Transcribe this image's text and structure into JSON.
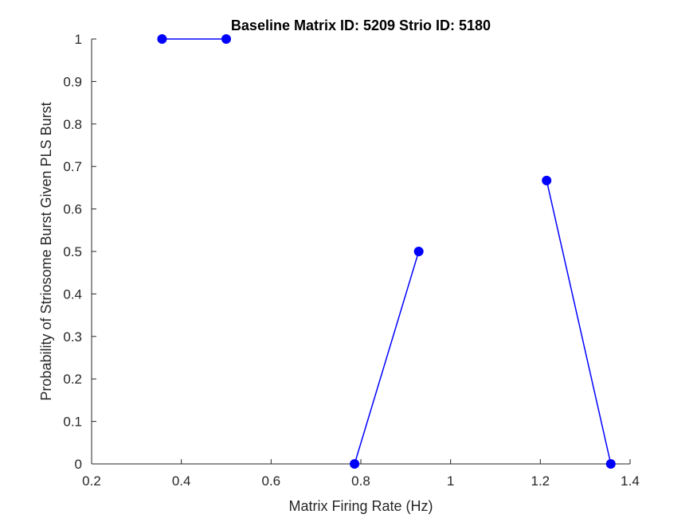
{
  "chart_data": {
    "type": "line",
    "title": "Baseline Matrix ID: 5209 Strio ID: 5180",
    "xlabel": "Matrix Firing Rate (Hz)",
    "ylabel": "Probability of Striosome Burst Given PLS Burst",
    "xlim": [
      0.2,
      1.4
    ],
    "ylim": [
      0,
      1
    ],
    "xticks": [
      "0.2",
      "0.4",
      "0.6",
      "0.8",
      "1",
      "1.2",
      "1.4"
    ],
    "yticks": [
      "0",
      "0.1",
      "0.2",
      "0.3",
      "0.4",
      "0.5",
      "0.6",
      "0.7",
      "0.8",
      "0.9",
      "1"
    ],
    "grid": false,
    "series_color": "#0000ff",
    "segments": [
      [
        {
          "x": 0.357,
          "y": 1.0
        },
        {
          "x": 0.5,
          "y": 1.0
        }
      ],
      [
        {
          "x": 0.786,
          "y": 0.0
        },
        {
          "x": 0.929,
          "y": 0.5
        }
      ],
      [
        {
          "x": 1.214,
          "y": 0.667
        },
        {
          "x": 1.357,
          "y": 0.0
        }
      ]
    ]
  }
}
